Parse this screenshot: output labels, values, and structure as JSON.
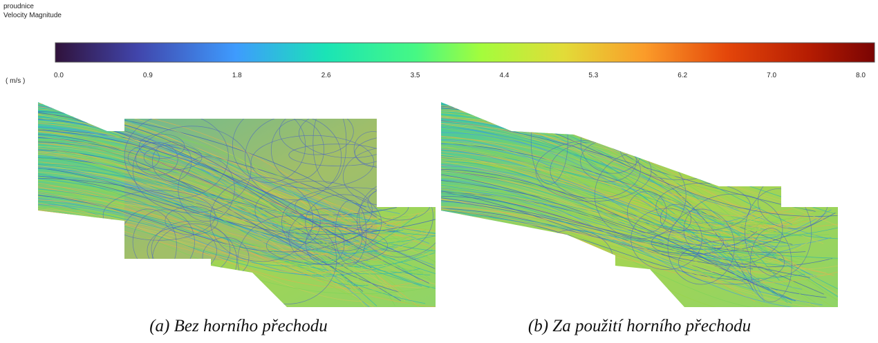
{
  "header": {
    "title": "proudnice",
    "subtitle": "Velocity Magnitude"
  },
  "colorbar": {
    "unit": "( m/s )",
    "ticks": [
      "0.0",
      "0.9",
      "1.8",
      "2.6",
      "3.5",
      "4.4",
      "5.3",
      "6.2",
      "7.0",
      "8.0"
    ]
  },
  "figures": [
    {
      "caption": "(a) Bez horního přechodu"
    },
    {
      "caption": "(b) Za použití horního přechodu"
    }
  ]
}
